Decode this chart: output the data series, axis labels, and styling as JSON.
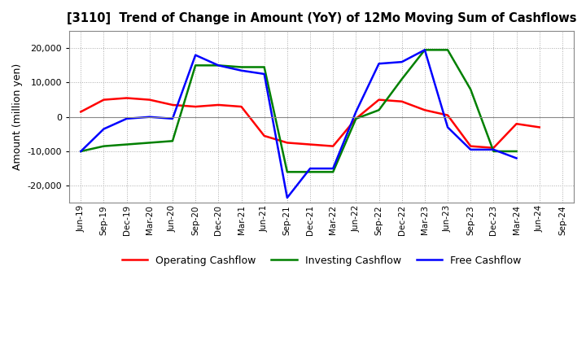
{
  "title": "[3110]  Trend of Change in Amount (YoY) of 12Mo Moving Sum of Cashflows",
  "ylabel": "Amount (million yen)",
  "background_color": "#ffffff",
  "grid_color": "#aaaaaa",
  "ylim": [
    -25000,
    25000
  ],
  "yticks": [
    -20000,
    -10000,
    0,
    10000,
    20000
  ],
  "labels": [
    "Jun-19",
    "Sep-19",
    "Dec-19",
    "Mar-20",
    "Jun-20",
    "Sep-20",
    "Dec-20",
    "Mar-21",
    "Jun-21",
    "Sep-21",
    "Dec-21",
    "Mar-22",
    "Jun-22",
    "Sep-22",
    "Dec-22",
    "Mar-23",
    "Jun-23",
    "Sep-23",
    "Dec-23",
    "Mar-24",
    "Jun-24",
    "Sep-24"
  ],
  "operating": [
    1500,
    5000,
    5500,
    5000,
    3500,
    3000,
    3500,
    3000,
    -5500,
    -7500,
    -8000,
    -8500,
    -500,
    5000,
    4500,
    2000,
    500,
    -8500,
    -9000,
    -2000,
    -3000,
    null
  ],
  "investing": [
    -10000,
    -8500,
    -8000,
    -7500,
    -7000,
    15000,
    15000,
    14500,
    14500,
    -16000,
    -16000,
    -16000,
    -500,
    2000,
    11000,
    19500,
    19500,
    8000,
    -10000,
    -10000,
    null,
    null
  ],
  "free": [
    -10000,
    -3500,
    -500,
    0,
    -500,
    18000,
    15000,
    13500,
    12500,
    -23500,
    -15000,
    -15000,
    1500,
    15500,
    16000,
    19500,
    -3000,
    -9500,
    -9500,
    -12000,
    null,
    null
  ],
  "op_color": "#ff0000",
  "inv_color": "#008000",
  "free_color": "#0000ff",
  "line_width": 1.8
}
